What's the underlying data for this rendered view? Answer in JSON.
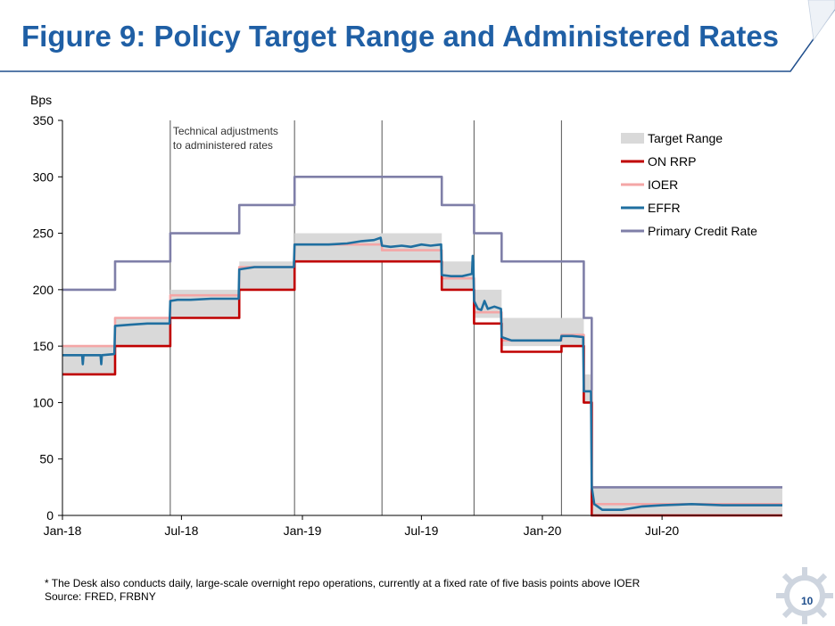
{
  "slide": {
    "title": "Figure 9: Policy Target Range and Administered Rates",
    "footnote_line1": "* The Desk also conducts daily, large-scale overnight repo operations, currently at a fixed rate of five basis points above IOER",
    "footnote_line2": "Source: FRED, FRBNY",
    "page_number": "10"
  },
  "colors": {
    "title": "#1f5fa5",
    "target_range": "#d9d9d9",
    "on_rrp": "#c00000",
    "ioer": "#f4a6a6",
    "effr": "#1f6fa0",
    "primary_credit": "#7f7fa8"
  },
  "chart_data": {
    "type": "line",
    "ylabel": "Bps",
    "ylim": [
      0,
      350
    ],
    "yticks": [
      "0",
      "50",
      "100",
      "150",
      "200",
      "250",
      "300",
      "350"
    ],
    "xlim": [
      "2018-01-01",
      "2020-12-31"
    ],
    "xticks": [
      {
        "date": "2018-01-01",
        "label": "Jan-18"
      },
      {
        "date": "2018-07-01",
        "label": "Jul-18"
      },
      {
        "date": "2019-01-01",
        "label": "Jan-19"
      },
      {
        "date": "2019-07-01",
        "label": "Jul-19"
      },
      {
        "date": "2020-01-01",
        "label": "Jan-20"
      },
      {
        "date": "2020-07-01",
        "label": "Jul-20"
      }
    ],
    "legend_position": "top-right",
    "annotation": {
      "line1": "Technical adjustments",
      "line2": "to administered rates",
      "dates": [
        "2018-06-14",
        "2018-12-20",
        "2019-05-02",
        "2019-09-19",
        "2020-01-30"
      ]
    },
    "series": [
      {
        "name": "Target Range",
        "kind": "band",
        "steps": [
          [
            "2018-01-01",
            125,
            150
          ],
          [
            "2018-03-22",
            150,
            175
          ],
          [
            "2018-06-14",
            175,
            200
          ],
          [
            "2018-09-27",
            200,
            225
          ],
          [
            "2018-12-20",
            225,
            250
          ],
          [
            "2019-08-01",
            200,
            225
          ],
          [
            "2019-09-19",
            175,
            200
          ],
          [
            "2019-10-31",
            150,
            175
          ],
          [
            "2020-03-04",
            100,
            125
          ],
          [
            "2020-03-16",
            0,
            25
          ]
        ]
      },
      {
        "name": "ON RRP",
        "kind": "step",
        "steps": [
          [
            "2018-01-01",
            125
          ],
          [
            "2018-03-22",
            150
          ],
          [
            "2018-06-14",
            175
          ],
          [
            "2018-09-27",
            200
          ],
          [
            "2018-12-20",
            225
          ],
          [
            "2019-08-01",
            200
          ],
          [
            "2019-09-19",
            170
          ],
          [
            "2019-10-31",
            145
          ],
          [
            "2020-01-30",
            150
          ],
          [
            "2020-03-04",
            100
          ],
          [
            "2020-03-16",
            0
          ]
        ]
      },
      {
        "name": "IOER",
        "kind": "step",
        "steps": [
          [
            "2018-01-01",
            150
          ],
          [
            "2018-03-22",
            175
          ],
          [
            "2018-06-14",
            195
          ],
          [
            "2018-09-27",
            220
          ],
          [
            "2018-12-20",
            240
          ],
          [
            "2019-05-02",
            235
          ],
          [
            "2019-08-01",
            210
          ],
          [
            "2019-09-19",
            180
          ],
          [
            "2019-10-31",
            155
          ],
          [
            "2020-01-30",
            160
          ],
          [
            "2020-03-04",
            110
          ],
          [
            "2020-03-16",
            10
          ]
        ]
      },
      {
        "name": "EFFR",
        "kind": "line",
        "points": [
          [
            "2018-01-01",
            142
          ],
          [
            "2018-01-31",
            142
          ],
          [
            "2018-02-01",
            134
          ],
          [
            "2018-02-02",
            142
          ],
          [
            "2018-02-28",
            142
          ],
          [
            "2018-03-01",
            134
          ],
          [
            "2018-03-02",
            142
          ],
          [
            "2018-03-21",
            143
          ],
          [
            "2018-03-22",
            168
          ],
          [
            "2018-04-15",
            169
          ],
          [
            "2018-05-10",
            170
          ],
          [
            "2018-06-13",
            170
          ],
          [
            "2018-06-14",
            190
          ],
          [
            "2018-06-25",
            191
          ],
          [
            "2018-07-15",
            191
          ],
          [
            "2018-08-15",
            192
          ],
          [
            "2018-09-26",
            192
          ],
          [
            "2018-09-27",
            218
          ],
          [
            "2018-10-20",
            220
          ],
          [
            "2018-11-20",
            220
          ],
          [
            "2018-12-19",
            220
          ],
          [
            "2018-12-20",
            240
          ],
          [
            "2019-02-10",
            240
          ],
          [
            "2019-03-10",
            241
          ],
          [
            "2019-04-01",
            243
          ],
          [
            "2019-04-20",
            244
          ],
          [
            "2019-04-30",
            246
          ],
          [
            "2019-05-02",
            239
          ],
          [
            "2019-05-15",
            238
          ],
          [
            "2019-06-01",
            239
          ],
          [
            "2019-06-15",
            238
          ],
          [
            "2019-07-01",
            240
          ],
          [
            "2019-07-15",
            239
          ],
          [
            "2019-07-31",
            240
          ],
          [
            "2019-08-01",
            213
          ],
          [
            "2019-08-15",
            212
          ],
          [
            "2019-09-01",
            212
          ],
          [
            "2019-09-16",
            214
          ],
          [
            "2019-09-17",
            230
          ],
          [
            "2019-09-18",
            225
          ],
          [
            "2019-09-19",
            190
          ],
          [
            "2019-09-25",
            183
          ],
          [
            "2019-09-30",
            182
          ],
          [
            "2019-10-05",
            190
          ],
          [
            "2019-10-10",
            183
          ],
          [
            "2019-10-20",
            185
          ],
          [
            "2019-10-30",
            183
          ],
          [
            "2019-10-31",
            158
          ],
          [
            "2019-11-15",
            155
          ],
          [
            "2019-12-15",
            155
          ],
          [
            "2020-01-15",
            155
          ],
          [
            "2020-01-29",
            155
          ],
          [
            "2020-01-30",
            159
          ],
          [
            "2020-02-15",
            159
          ],
          [
            "2020-03-03",
            158
          ],
          [
            "2020-03-04",
            110
          ],
          [
            "2020-03-15",
            110
          ],
          [
            "2020-03-16",
            25
          ],
          [
            "2020-03-20",
            10
          ],
          [
            "2020-04-01",
            5
          ],
          [
            "2020-05-01",
            5
          ],
          [
            "2020-06-01",
            8
          ],
          [
            "2020-07-01",
            9
          ],
          [
            "2020-08-15",
            10
          ],
          [
            "2020-10-01",
            9
          ],
          [
            "2020-12-31",
            9
          ]
        ]
      },
      {
        "name": "Primary Credit Rate",
        "kind": "step",
        "steps": [
          [
            "2018-01-01",
            200
          ],
          [
            "2018-03-22",
            225
          ],
          [
            "2018-06-14",
            250
          ],
          [
            "2018-09-27",
            275
          ],
          [
            "2018-12-20",
            300
          ],
          [
            "2019-08-01",
            275
          ],
          [
            "2019-09-19",
            250
          ],
          [
            "2019-10-31",
            225
          ],
          [
            "2020-03-04",
            175
          ],
          [
            "2020-03-16",
            25
          ]
        ]
      }
    ]
  }
}
